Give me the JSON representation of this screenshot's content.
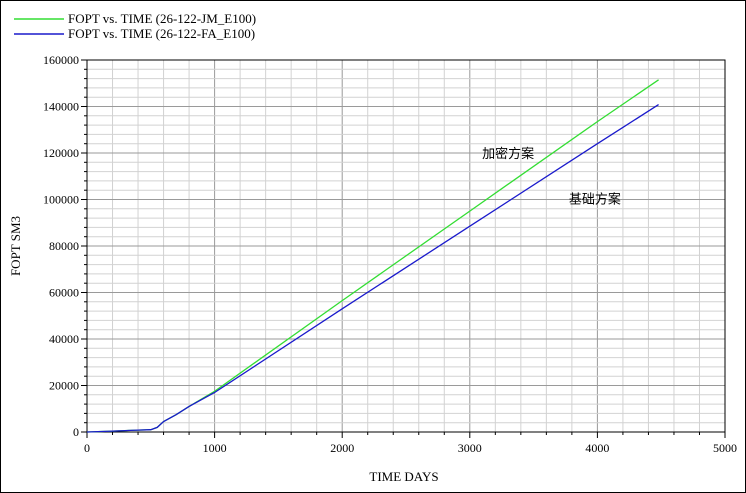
{
  "chart_data": {
    "type": "line",
    "title": "",
    "xlabel": "TIME DAYS",
    "ylabel": "FOPT SM3",
    "xlim": [
      0,
      5000
    ],
    "ylim": [
      0,
      160000
    ],
    "x_ticks": [
      "0",
      "1000",
      "2000",
      "3000",
      "4000",
      "5000"
    ],
    "y_ticks": [
      "0",
      "20000",
      "40000",
      "60000",
      "80000",
      "100000",
      "120000",
      "140000",
      "160000"
    ],
    "grid": true,
    "legend_position": "top-left",
    "series": [
      {
        "name": "FOPT vs. TIME (26-122-JM_E100)",
        "color": "#33dd33",
        "points": [
          [
            0,
            0
          ],
          [
            200,
            400
          ],
          [
            400,
            800
          ],
          [
            500,
            1000
          ],
          [
            550,
            2000
          ],
          [
            600,
            4500
          ],
          [
            700,
            7500
          ],
          [
            800,
            11000
          ],
          [
            1000,
            17500
          ],
          [
            2000,
            56500
          ],
          [
            3000,
            95000
          ],
          [
            4000,
            133500
          ],
          [
            4480,
            151500
          ]
        ]
      },
      {
        "name": "FOPT vs. TIME (26-122-FA_E100)",
        "color": "#1a1acc",
        "points": [
          [
            0,
            0
          ],
          [
            200,
            400
          ],
          [
            400,
            800
          ],
          [
            500,
            1000
          ],
          [
            550,
            2000
          ],
          [
            600,
            4500
          ],
          [
            700,
            7500
          ],
          [
            800,
            11000
          ],
          [
            1000,
            17000
          ],
          [
            2000,
            53000
          ],
          [
            3000,
            88500
          ],
          [
            4000,
            124000
          ],
          [
            4480,
            140800
          ]
        ]
      }
    ],
    "annotations": [
      {
        "text": "加密方案",
        "x": 3300,
        "y": 120000
      },
      {
        "text": "基础方案",
        "x": 3980,
        "y": 100500
      }
    ]
  }
}
